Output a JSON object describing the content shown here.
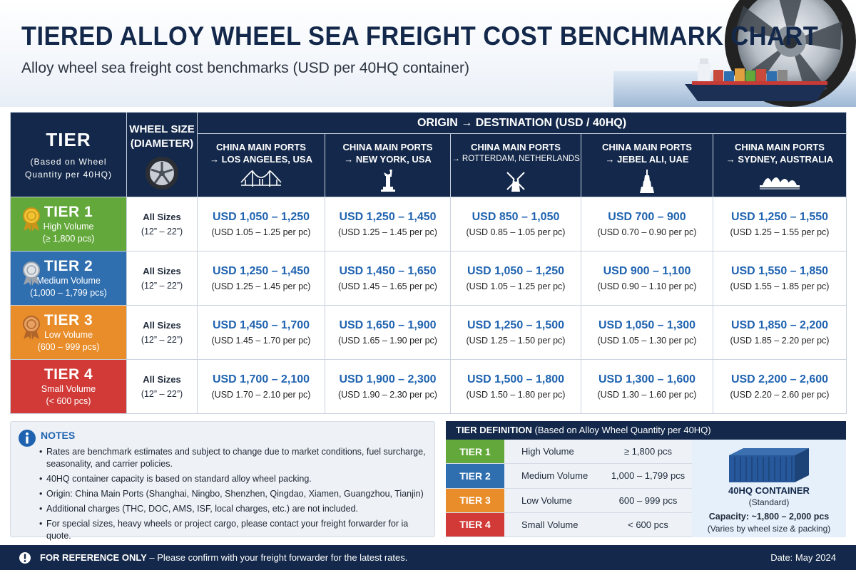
{
  "header": {
    "title": "TIERED ALLOY WHEEL SEA FREIGHT COST BENCHMARK CHART",
    "subtitle": "Alloy wheel sea freight cost benchmarks (USD per 40HQ container)"
  },
  "table": {
    "tier_header": "TIER",
    "tier_header_sub": "(Based on Wheel Quantity per 40HQ)",
    "size_header": "WHEEL SIZE (DIAMETER)",
    "od_header": "ORIGIN → DESTINATION (USD / 40HQ)",
    "routes": [
      {
        "line1": "CHINA MAIN PORTS",
        "line2": "→ LOS ANGELES, USA",
        "icon": "bridge-icon"
      },
      {
        "line1": "CHINA MAIN PORTS",
        "line2": "→ NEW YORK, USA",
        "icon": "statue-of-liberty-icon"
      },
      {
        "line1": "CHINA MAIN PORTS",
        "line2": "→ ROTTERDAM, NETHERLANDS",
        "icon": "windmill-icon"
      },
      {
        "line1": "CHINA MAIN PORTS",
        "line2": "→ JEBEL ALI, UAE",
        "icon": "burj-icon"
      },
      {
        "line1": "CHINA MAIN PORTS",
        "line2": "→ SYDNEY, AUSTRALIA",
        "icon": "opera-house-icon"
      }
    ],
    "rows": [
      {
        "tier": "TIER 1",
        "volume": "High Volume",
        "qty": "(≥ 1,800 pcs)",
        "color": "#63a83a",
        "medal": "gold",
        "size": "All Sizes",
        "size_range": "(12” – 22”)",
        "rates": [
          {
            "usd": "USD 1,050 – 1,250",
            "pc": "(USD 1.05 – 1.25 per pc)"
          },
          {
            "usd": "USD 1,250 – 1,450",
            "pc": "(USD 1.25 – 1.45 per pc)"
          },
          {
            "usd": "USD 850 – 1,050",
            "pc": "(USD 0.85 – 1.05 per pc)"
          },
          {
            "usd": "USD 700 – 900",
            "pc": "(USD 0.70 – 0.90 per pc)"
          },
          {
            "usd": "USD 1,250 – 1,550",
            "pc": "(USD 1.25 – 1.55 per pc)"
          }
        ]
      },
      {
        "tier": "TIER 2",
        "volume": "Medium Volume",
        "qty": "(1,000 – 1,799 pcs)",
        "color": "#2f6fb0",
        "medal": "silver",
        "size": "All Sizes",
        "size_range": "(12” – 22”)",
        "rates": [
          {
            "usd": "USD 1,250 – 1,450",
            "pc": "(USD 1.25 – 1.45 per pc)"
          },
          {
            "usd": "USD 1,450 – 1,650",
            "pc": "(USD 1.45 – 1.65 per pc)"
          },
          {
            "usd": "USD 1,050 – 1,250",
            "pc": "(USD 1.05 – 1.25 per pc)"
          },
          {
            "usd": "USD 900 – 1,100",
            "pc": "(USD 0.90 – 1.10 per pc)"
          },
          {
            "usd": "USD 1,550 – 1,850",
            "pc": "(USD 1.55 – 1.85 per pc)"
          }
        ]
      },
      {
        "tier": "TIER 3",
        "volume": "Low Volume",
        "qty": "(600 – 999 pcs)",
        "color": "#e98d2a",
        "medal": "bronze",
        "size": "All Sizes",
        "size_range": "(12” – 22”)",
        "rates": [
          {
            "usd": "USD 1,450 – 1,700",
            "pc": "(USD 1.45 – 1.70 per pc)"
          },
          {
            "usd": "USD 1,650 – 1,900",
            "pc": "(USD 1.65 – 1.90 per pc)"
          },
          {
            "usd": "USD 1,250 – 1,500",
            "pc": "(USD 1.25 – 1.50 per pc)"
          },
          {
            "usd": "USD 1,050 – 1,300",
            "pc": "(USD 1.05 – 1.30 per pc)"
          },
          {
            "usd": "USD 1,850 – 2,200",
            "pc": "(USD 1.85 – 2.20 per pc)"
          }
        ]
      },
      {
        "tier": "TIER 4",
        "volume": "Small Volume",
        "qty": "(< 600 pcs)",
        "color": "#d13a37",
        "medal": "none",
        "size": "All Sizes",
        "size_range": "(12” – 22”)",
        "rates": [
          {
            "usd": "USD 1,700 – 2,100",
            "pc": "(USD 1.70 – 2.10 per pc)"
          },
          {
            "usd": "USD 1,900 – 2,300",
            "pc": "(USD 1.90 – 2.30 per pc)"
          },
          {
            "usd": "USD 1,500 – 1,800",
            "pc": "(USD 1.50 – 1.80 per pc)"
          },
          {
            "usd": "USD 1,300 – 1,600",
            "pc": "(USD 1.30 – 1.60 per pc)"
          },
          {
            "usd": "USD 2,200 – 2,600",
            "pc": "(USD 2.20 – 2.60 per pc)"
          }
        ]
      }
    ]
  },
  "notes": {
    "heading": "NOTES",
    "items": [
      "Rates are benchmark estimates and subject to change due to market conditions, fuel surcharge, seasonality, and carrier policies.",
      "40HQ container capacity is based on standard alloy wheel packing.",
      "Origin: China Main Ports (Shanghai, Ningbo, Shenzhen, Qingdao, Xiamen, Guangzhou, Tianjin)",
      "Additional charges (THC, DOC, AMS, ISF, local charges, etc.) are not included.",
      "For special sizes, heavy wheels or project cargo, please contact your freight forwarder for ia quote."
    ]
  },
  "tier_definition": {
    "heading": "TIER DEFINITION",
    "heading_sub": "(Based on Alloy Wheel Quantity per 40HQ)",
    "rows": [
      {
        "tier": "TIER 1",
        "level": "High Volume",
        "qty": "≥ 1,800 pcs",
        "color": "#63a83a"
      },
      {
        "tier": "TIER 2",
        "level": "Medium Volume",
        "qty": "1,000 – 1,799 pcs",
        "color": "#2f6fb0"
      },
      {
        "tier": "TIER 3",
        "level": "Low Volume",
        "qty": "600 – 999 pcs",
        "color": "#e98d2a"
      },
      {
        "tier": "TIER 4",
        "level": "Small Volume",
        "qty": "< 600 pcs",
        "color": "#d13a37"
      }
    ],
    "container": {
      "title": "40HQ CONTAINER",
      "standard": "(Standard)",
      "capacity": "Capacity: ~1,800 – 2,000 pcs",
      "varies": "(Varies by wheel size & packing)"
    }
  },
  "footer": {
    "ref_bold": "FOR REFERENCE ONLY",
    "ref_rest": " – Please confirm with your freight forwarder for the latest rates.",
    "date": "Date: May 2024"
  },
  "colors": {
    "navy": "#13284a",
    "accent_blue": "#1f63b0",
    "tier1": "#63a83a",
    "tier2": "#2f6fb0",
    "tier3": "#e98d2a",
    "tier4": "#d13a37"
  }
}
